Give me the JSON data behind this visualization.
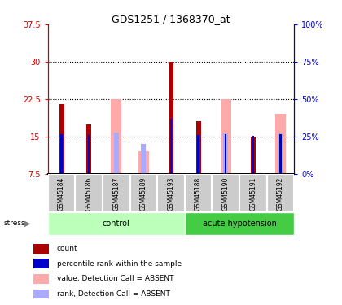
{
  "title": "GDS1251 / 1368370_at",
  "samples": [
    "GSM45184",
    "GSM45186",
    "GSM45187",
    "GSM45189",
    "GSM45193",
    "GSM45188",
    "GSM45190",
    "GSM45191",
    "GSM45192"
  ],
  "red_bars": [
    21.5,
    17.5,
    null,
    null,
    30.0,
    18.0,
    null,
    15.0,
    null
  ],
  "blue_bars": [
    15.5,
    15.3,
    null,
    null,
    18.5,
    15.3,
    15.5,
    15.2,
    15.5
  ],
  "pink_bars": [
    null,
    null,
    22.5,
    12.0,
    null,
    null,
    22.5,
    null,
    19.5
  ],
  "lightblue_bars": [
    null,
    null,
    15.8,
    13.5,
    null,
    null,
    15.7,
    null,
    15.7
  ],
  "y_min": 7.5,
  "y_max": 37.5,
  "y_ticks_left": [
    7.5,
    15,
    22.5,
    30,
    37.5
  ],
  "y_ticks_right": [
    0,
    25,
    50,
    75,
    100
  ],
  "dotted_lines": [
    15,
    22.5,
    30
  ],
  "red_color": "#aa0000",
  "blue_color": "#0000cc",
  "pink_color": "#ffaaaa",
  "lightblue_color": "#aaaaff",
  "control_color": "#bbffbb",
  "acute_color": "#44cc44",
  "left_axis_color": "#cc0000",
  "right_axis_color": "#0000cc",
  "label_area_color": "#cccccc"
}
